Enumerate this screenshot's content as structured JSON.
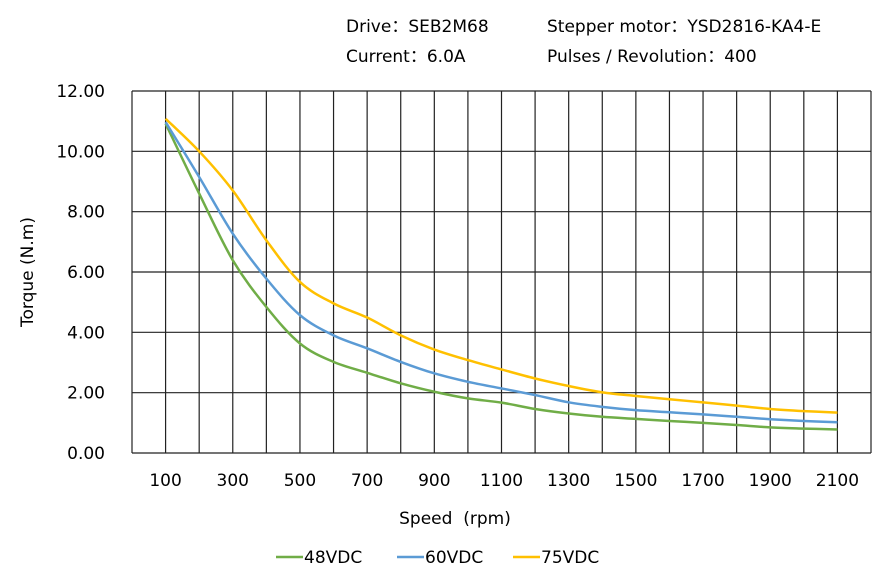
{
  "header": {
    "drive": "Drive：SEB2M68",
    "motor": "Stepper motor：YSD2816-KA4-E",
    "current": "Current：6.0A",
    "pulses": "Pulses / Revolution：400"
  },
  "chart_data": {
    "type": "line",
    "title": "",
    "xlabel": "Speed  (rpm)",
    "ylabel": "Torque (N.m)",
    "xlim": [
      0,
      2200
    ],
    "ylim": [
      0,
      12
    ],
    "grid": true,
    "legend": "bottom",
    "x_tick_labels": [
      "100",
      "300",
      "500",
      "700",
      "900",
      "1100",
      "1300",
      "1500",
      "1700",
      "1900",
      "2100"
    ],
    "y_tick_labels": [
      "0.00",
      "2.00",
      "4.00",
      "6.00",
      "8.00",
      "10.00",
      "12.00"
    ],
    "x": [
      100,
      200,
      300,
      400,
      500,
      600,
      700,
      800,
      900,
      1000,
      1100,
      1200,
      1300,
      1400,
      1500,
      1600,
      1700,
      1800,
      1900,
      2000,
      2100
    ],
    "series": [
      {
        "name": "48VDC",
        "color": "#70AD47",
        "values": [
          10.92,
          8.6,
          6.39,
          4.84,
          3.63,
          3.02,
          2.66,
          2.31,
          2.03,
          1.81,
          1.67,
          1.46,
          1.31,
          1.2,
          1.13,
          1.06,
          1.0,
          0.93,
          0.85,
          0.81,
          0.78
        ]
      },
      {
        "name": "60VDC",
        "color": "#5B9BD5",
        "values": [
          10.97,
          9.15,
          7.27,
          5.78,
          4.57,
          3.9,
          3.47,
          3.02,
          2.64,
          2.36,
          2.14,
          1.92,
          1.68,
          1.53,
          1.42,
          1.35,
          1.28,
          1.2,
          1.12,
          1.06,
          1.02
        ]
      },
      {
        "name": "75VDC",
        "color": "#FFC000",
        "values": [
          11.08,
          10.0,
          8.7,
          7.05,
          5.67,
          4.96,
          4.49,
          3.9,
          3.43,
          3.08,
          2.77,
          2.47,
          2.22,
          2.01,
          1.89,
          1.78,
          1.68,
          1.57,
          1.46,
          1.39,
          1.34
        ]
      }
    ]
  }
}
